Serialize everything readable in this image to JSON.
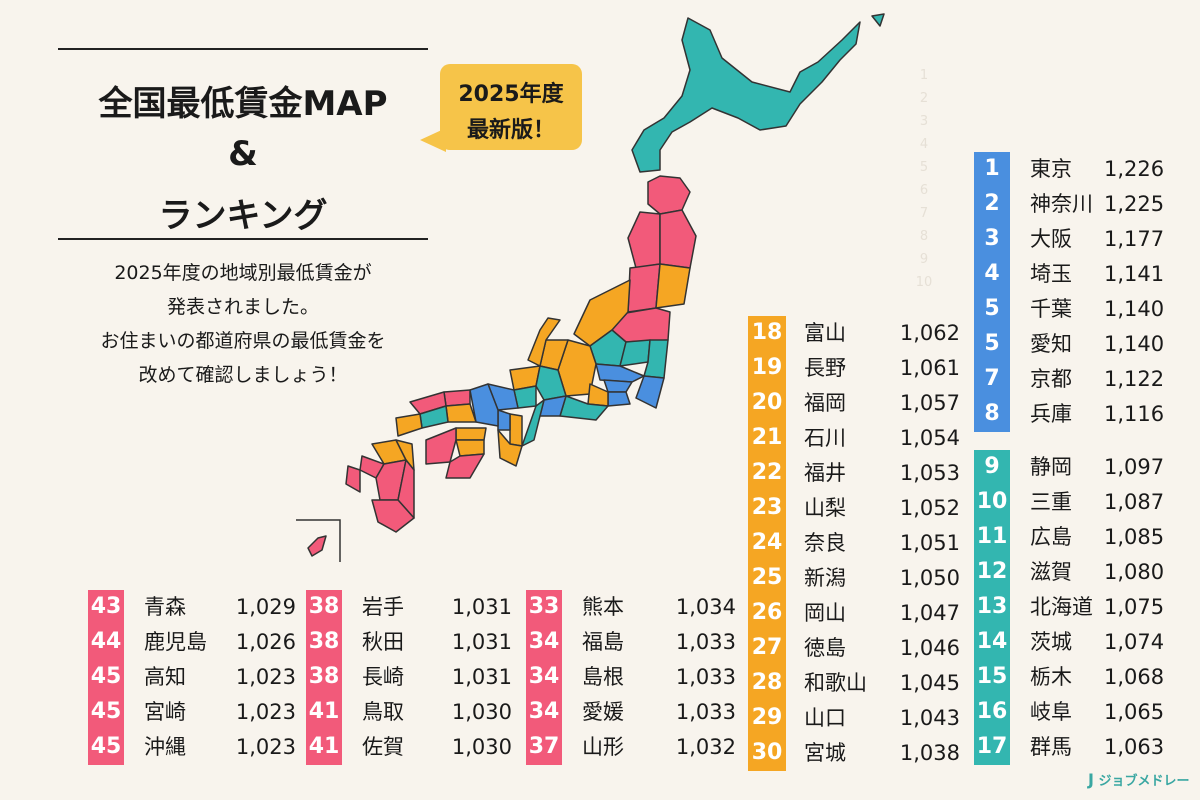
{
  "header": {
    "title_line1": "全国最低賃金MAP",
    "title_line2": "&",
    "title_line3": "ランキング",
    "badge_line1": "2025年度",
    "badge_line2": "最新版！",
    "description": [
      "2025年度の地域別最低賃金が",
      "発表されました。",
      "お住まいの都道府県の最低賃金を",
      "改めて確認しましょう！"
    ]
  },
  "colors": {
    "pink": "#f25a7a",
    "orange": "#f5a623",
    "blue": "#4a8fdf",
    "teal": "#33b6b0"
  },
  "faint_numbers": [
    "1",
    "2",
    "3",
    "4",
    "5",
    "6",
    "7",
    "8",
    "9",
    "10"
  ],
  "ranking": {
    "blue": [
      {
        "rank": "1",
        "pref": "東京",
        "wage": "1,226"
      },
      {
        "rank": "2",
        "pref": "神奈川",
        "wage": "1,225"
      },
      {
        "rank": "3",
        "pref": "大阪",
        "wage": "1,177"
      },
      {
        "rank": "4",
        "pref": "埼玉",
        "wage": "1,141"
      },
      {
        "rank": "5",
        "pref": "千葉",
        "wage": "1,140"
      },
      {
        "rank": "5",
        "pref": "愛知",
        "wage": "1,140"
      },
      {
        "rank": "7",
        "pref": "京都",
        "wage": "1,122"
      },
      {
        "rank": "8",
        "pref": "兵庫",
        "wage": "1,116"
      }
    ],
    "teal": [
      {
        "rank": "9",
        "pref": "静岡",
        "wage": "1,097"
      },
      {
        "rank": "10",
        "pref": "三重",
        "wage": "1,087"
      },
      {
        "rank": "11",
        "pref": "広島",
        "wage": "1,085"
      },
      {
        "rank": "12",
        "pref": "滋賀",
        "wage": "1,080"
      },
      {
        "rank": "13",
        "pref": "北海道",
        "wage": "1,075"
      },
      {
        "rank": "14",
        "pref": "茨城",
        "wage": "1,074"
      },
      {
        "rank": "15",
        "pref": "栃木",
        "wage": "1,068"
      },
      {
        "rank": "16",
        "pref": "岐阜",
        "wage": "1,065"
      },
      {
        "rank": "17",
        "pref": "群馬",
        "wage": "1,063"
      }
    ],
    "orange": [
      {
        "rank": "18",
        "pref": "富山",
        "wage": "1,062"
      },
      {
        "rank": "19",
        "pref": "長野",
        "wage": "1,061"
      },
      {
        "rank": "20",
        "pref": "福岡",
        "wage": "1,057"
      },
      {
        "rank": "21",
        "pref": "石川",
        "wage": "1,054"
      },
      {
        "rank": "22",
        "pref": "福井",
        "wage": "1,053"
      },
      {
        "rank": "23",
        "pref": "山梨",
        "wage": "1,052"
      },
      {
        "rank": "24",
        "pref": "奈良",
        "wage": "1,051"
      },
      {
        "rank": "25",
        "pref": "新潟",
        "wage": "1,050"
      },
      {
        "rank": "26",
        "pref": "岡山",
        "wage": "1,047"
      },
      {
        "rank": "27",
        "pref": "徳島",
        "wage": "1,046"
      },
      {
        "rank": "28",
        "pref": "和歌山",
        "wage": "1,045"
      },
      {
        "rank": "29",
        "pref": "山口",
        "wage": "1,043"
      },
      {
        "rank": "30",
        "pref": "宮城",
        "wage": "1,038"
      }
    ],
    "pink_col3": [
      {
        "rank": "33",
        "pref": "熊本",
        "wage": "1,034"
      },
      {
        "rank": "34",
        "pref": "福島",
        "wage": "1,033"
      },
      {
        "rank": "34",
        "pref": "島根",
        "wage": "1,033"
      },
      {
        "rank": "34",
        "pref": "愛媛",
        "wage": "1,033"
      },
      {
        "rank": "37",
        "pref": "山形",
        "wage": "1,032"
      }
    ],
    "pink_col2": [
      {
        "rank": "38",
        "pref": "岩手",
        "wage": "1,031"
      },
      {
        "rank": "38",
        "pref": "秋田",
        "wage": "1,031"
      },
      {
        "rank": "38",
        "pref": "長崎",
        "wage": "1,031"
      },
      {
        "rank": "41",
        "pref": "鳥取",
        "wage": "1,030"
      },
      {
        "rank": "41",
        "pref": "佐賀",
        "wage": "1,030"
      }
    ],
    "pink_col1": [
      {
        "rank": "43",
        "pref": "青森",
        "wage": "1,029"
      },
      {
        "rank": "44",
        "pref": "鹿児島",
        "wage": "1,026"
      },
      {
        "rank": "45",
        "pref": "高知",
        "wage": "1,023"
      },
      {
        "rank": "45",
        "pref": "宮崎",
        "wage": "1,023"
      },
      {
        "rank": "45",
        "pref": "沖縄",
        "wage": "1,023"
      }
    ]
  },
  "logo": "ジョブメドレー"
}
